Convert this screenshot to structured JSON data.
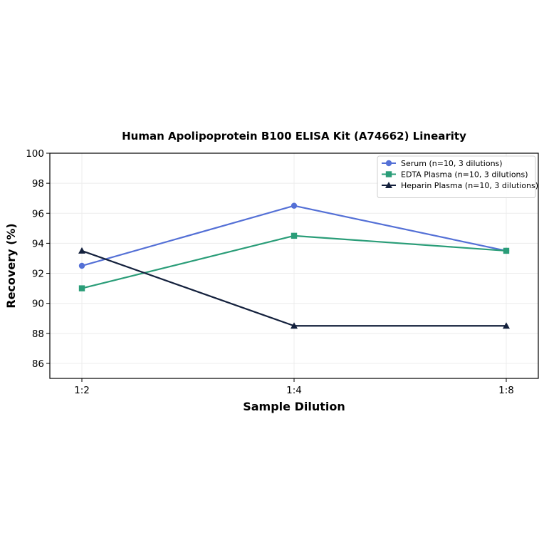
{
  "chart_data": {
    "type": "line",
    "title": "Human Apolipoprotein B100 ELISA Kit (A74662) Linearity",
    "xlabel": "Sample Dilution",
    "ylabel": "Recovery (%)",
    "categories": [
      "1:2",
      "1:4",
      "1:8"
    ],
    "ylim": [
      85,
      100
    ],
    "yticks": [
      86,
      88,
      90,
      92,
      94,
      96,
      98,
      100
    ],
    "grid": true,
    "legend_position": "top-right",
    "series": [
      {
        "name": "Serum (n=10, 3 dilutions)",
        "values": [
          92.5,
          96.5,
          93.5
        ],
        "color": "#5470d6",
        "marker": "circle"
      },
      {
        "name": "EDTA Plasma (n=10, 3 dilutions)",
        "values": [
          91.0,
          94.5,
          93.5
        ],
        "color": "#2a9d78",
        "marker": "square"
      },
      {
        "name": "Heparin Plasma (n=10, 3 dilutions)",
        "values": [
          93.5,
          88.5,
          88.5
        ],
        "color": "#14213d",
        "marker": "triangle"
      }
    ]
  }
}
